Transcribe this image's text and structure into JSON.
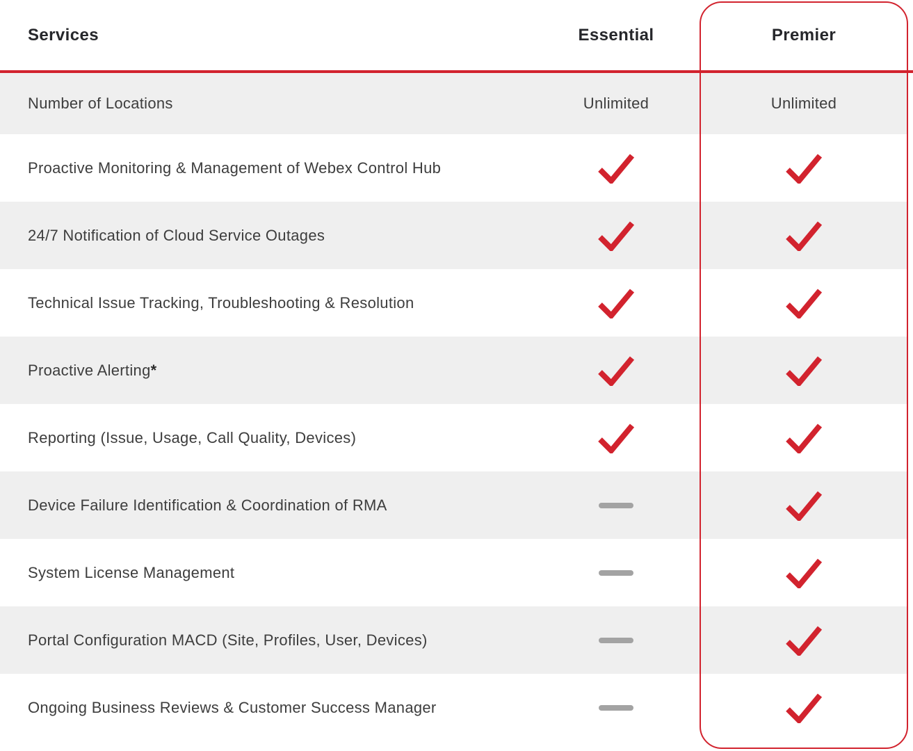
{
  "colors": {
    "accent_red": "#d2232e",
    "row_shade_gray": "#efefef",
    "dash_gray": "#a3a3a3",
    "header_text": "#26272b",
    "body_text": "#3d3d3d"
  },
  "table": {
    "headers": [
      "Services",
      "Essential",
      "Premier"
    ],
    "highlighted_column": "Premier",
    "rows": [
      {
        "service": "Number of Locations",
        "service_suffix": "",
        "essential": "Unlimited",
        "premier": "Unlimited"
      },
      {
        "service": "Proactive Monitoring & Management of Webex Control Hub",
        "service_suffix": "",
        "essential": "check",
        "premier": "check"
      },
      {
        "service": "24/7 Notification of Cloud Service Outages",
        "service_suffix": "",
        "essential": "check",
        "premier": "check"
      },
      {
        "service": "Technical Issue Tracking, Troubleshooting & Resolution",
        "service_suffix": "",
        "essential": "check",
        "premier": "check"
      },
      {
        "service": "Proactive Alerting",
        "service_suffix": "*",
        "essential": "check",
        "premier": "check"
      },
      {
        "service": "Reporting (Issue, Usage, Call Quality, Devices)",
        "service_suffix": "",
        "essential": "check",
        "premier": "check"
      },
      {
        "service": "Device Failure Identification & Coordination of RMA",
        "service_suffix": "",
        "essential": "dash",
        "premier": "check"
      },
      {
        "service": "System License Management",
        "service_suffix": "",
        "essential": "dash",
        "premier": "check"
      },
      {
        "service": "Portal Configuration MACD (Site, Profiles, User, Devices)",
        "service_suffix": "",
        "essential": "dash",
        "premier": "check"
      },
      {
        "service": "Ongoing Business Reviews & Customer Success Manager",
        "service_suffix": "",
        "essential": "dash",
        "premier": "check"
      }
    ]
  }
}
